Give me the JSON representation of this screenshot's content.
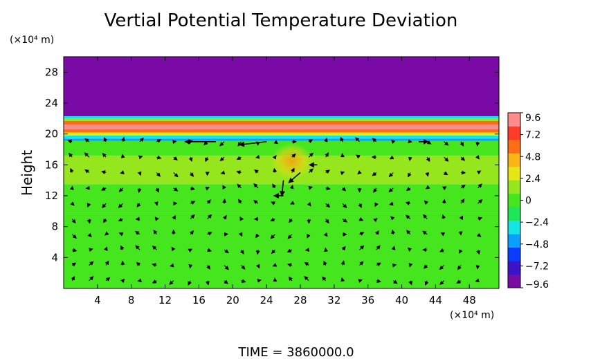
{
  "chart_data": {
    "type": "heatmap",
    "overlay": "vector-field",
    "title": "Vertial Potential Temperature Deviation",
    "xlabel": "",
    "ylabel": "Height",
    "x_unit_label": "(×10⁴ m)",
    "y_unit_label": "(×10⁴ m)",
    "xlim": [
      0,
      51.5
    ],
    "ylim": [
      0,
      30
    ],
    "x_ticks": [
      4,
      8,
      12,
      16,
      20,
      24,
      28,
      32,
      36,
      40,
      44,
      48
    ],
    "y_ticks": [
      4,
      8,
      12,
      16,
      20,
      24,
      28
    ],
    "x_tick_labels": [
      "4",
      "8",
      "12",
      "16",
      "20",
      "24",
      "28",
      "32",
      "36",
      "40",
      "44",
      "48"
    ],
    "y_tick_labels": [
      "4",
      "8",
      "12",
      "16",
      "20",
      "24",
      "28"
    ],
    "colorbar": {
      "range": [
        -9.6,
        9.6
      ],
      "tick_values": [
        9.6,
        7.2,
        4.8,
        2.4,
        0,
        -2.4,
        -4.8,
        -7.2,
        -9.6
      ],
      "tick_labels": [
        "9.6",
        "7.2",
        "4.8",
        "2.4",
        "0",
        "−2.4",
        "−4.8",
        "−7.2",
        "−9.6"
      ],
      "colors": [
        "#7a0aa6",
        "#3c14c8",
        "#0a3cff",
        "#0aa0ff",
        "#14e6e6",
        "#1ee65a",
        "#46e61e",
        "#96e61e",
        "#e6e614",
        "#fab414",
        "#ff6e14",
        "#ff3c28",
        "#ff8c8c"
      ]
    },
    "bands": [
      {
        "y_from": 0,
        "y_to": 9.8,
        "value": -0.4
      },
      {
        "y_from": 9.8,
        "y_to": 13.5,
        "value": 0.7
      },
      {
        "y_from": 13.5,
        "y_to": 17.2,
        "value": 1.9
      },
      {
        "y_from": 17.2,
        "y_to": 19.1,
        "value": 0.4
      },
      {
        "y_from": 19.1,
        "y_to": 19.4,
        "value": -3.8
      },
      {
        "y_from": 19.4,
        "y_to": 19.8,
        "value": -2.4
      },
      {
        "y_from": 19.8,
        "y_to": 20.2,
        "value": 3.2
      },
      {
        "y_from": 20.2,
        "y_to": 20.6,
        "value": 6.4
      },
      {
        "y_from": 20.6,
        "y_to": 21.2,
        "value": 8.6
      },
      {
        "y_from": 21.2,
        "y_to": 21.7,
        "value": 6.0
      },
      {
        "y_from": 21.7,
        "y_to": 22.0,
        "value": 1.5
      },
      {
        "y_from": 22.0,
        "y_to": 22.3,
        "value": -3.5
      },
      {
        "y_from": 22.3,
        "y_to": 30,
        "value": -9.8
      }
    ],
    "warm_anomaly": {
      "x": 27,
      "y": 16.5,
      "value": 5.2
    },
    "vectors": [
      {
        "x": 26,
        "y": 14,
        "u": -0.2,
        "v": -2.0
      },
      {
        "x": 28,
        "y": 15,
        "u": -1.5,
        "v": -1.3
      },
      {
        "x": 24,
        "y": 19,
        "u": -3.5,
        "v": -0.4
      },
      {
        "x": 18,
        "y": 19,
        "u": -4.0,
        "v": 0
      },
      {
        "x": 30,
        "y": 16,
        "u": -1.0,
        "v": 0
      },
      {
        "x": 26,
        "y": 12,
        "u": -1.2,
        "v": 0
      },
      {
        "x": 42,
        "y": 19,
        "u": 1.2,
        "v": 0
      }
    ],
    "grid": false,
    "legend": "colorbar-right",
    "footer": "TIME = 3860000.0"
  }
}
